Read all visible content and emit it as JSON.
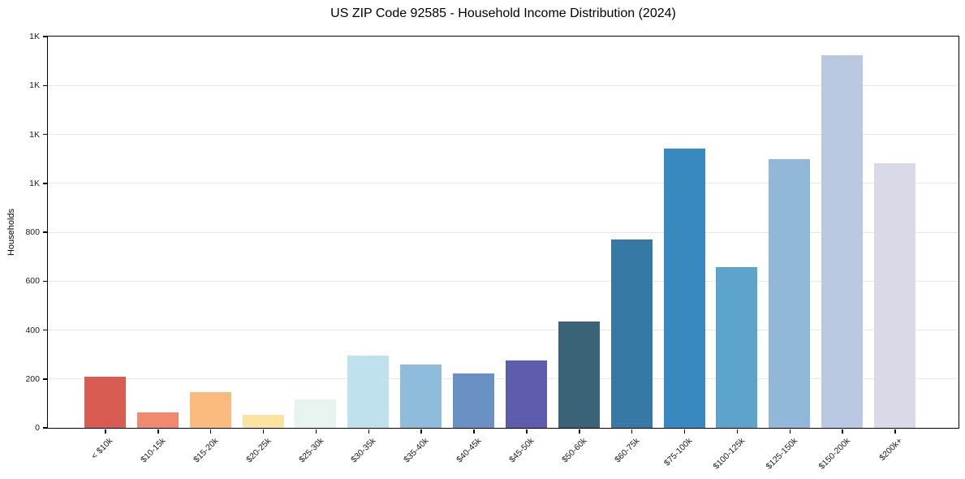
{
  "title": "US ZIP Code 92585 - Household Income Distribution (2024)",
  "chart_data": {
    "type": "bar",
    "title": "US ZIP Code 92585 - Household Income Distribution (2024)",
    "xlabel": "",
    "ylabel": "Households",
    "categories": [
      "< $10k",
      "$10-15k",
      "$15-20k",
      "$20-25k",
      "$25-30k",
      "$30-35k",
      "$35-40k",
      "$40-45k",
      "$45-50k",
      "$50-60k",
      "$60-75k",
      "$75-100k",
      "$100-125k",
      "$125-150k",
      "$150-200k",
      "$200k+"
    ],
    "values": [
      207,
      60,
      145,
      50,
      113,
      293,
      257,
      220,
      273,
      432,
      767,
      1140,
      657,
      1096,
      1523,
      1079
    ],
    "bar_colors": [
      "#d95c52",
      "#f08a6e",
      "#fcbb7e",
      "#fce39f",
      "#e8f4f0",
      "#bfe1ee",
      "#8fbbdc",
      "#6a91c4",
      "#5d5cad",
      "#3b6377",
      "#3579a4",
      "#3789bf",
      "#5ca4cb",
      "#91b8d9",
      "#bac9e1",
      "#d8dae7"
    ],
    "ylim": [
      0,
      1600
    ],
    "yticks": [
      {
        "value": 0,
        "label": "0"
      },
      {
        "value": 200,
        "label": "200"
      },
      {
        "value": 400,
        "label": "400"
      },
      {
        "value": 600,
        "label": "600"
      },
      {
        "value": 800,
        "label": "800"
      },
      {
        "value": 1000,
        "label": "1K"
      },
      {
        "value": 1200,
        "label": "1K"
      },
      {
        "value": 1400,
        "label": "1K"
      },
      {
        "value": 1600,
        "label": "1K"
      }
    ],
    "grid": "horizontal",
    "legend": false
  }
}
